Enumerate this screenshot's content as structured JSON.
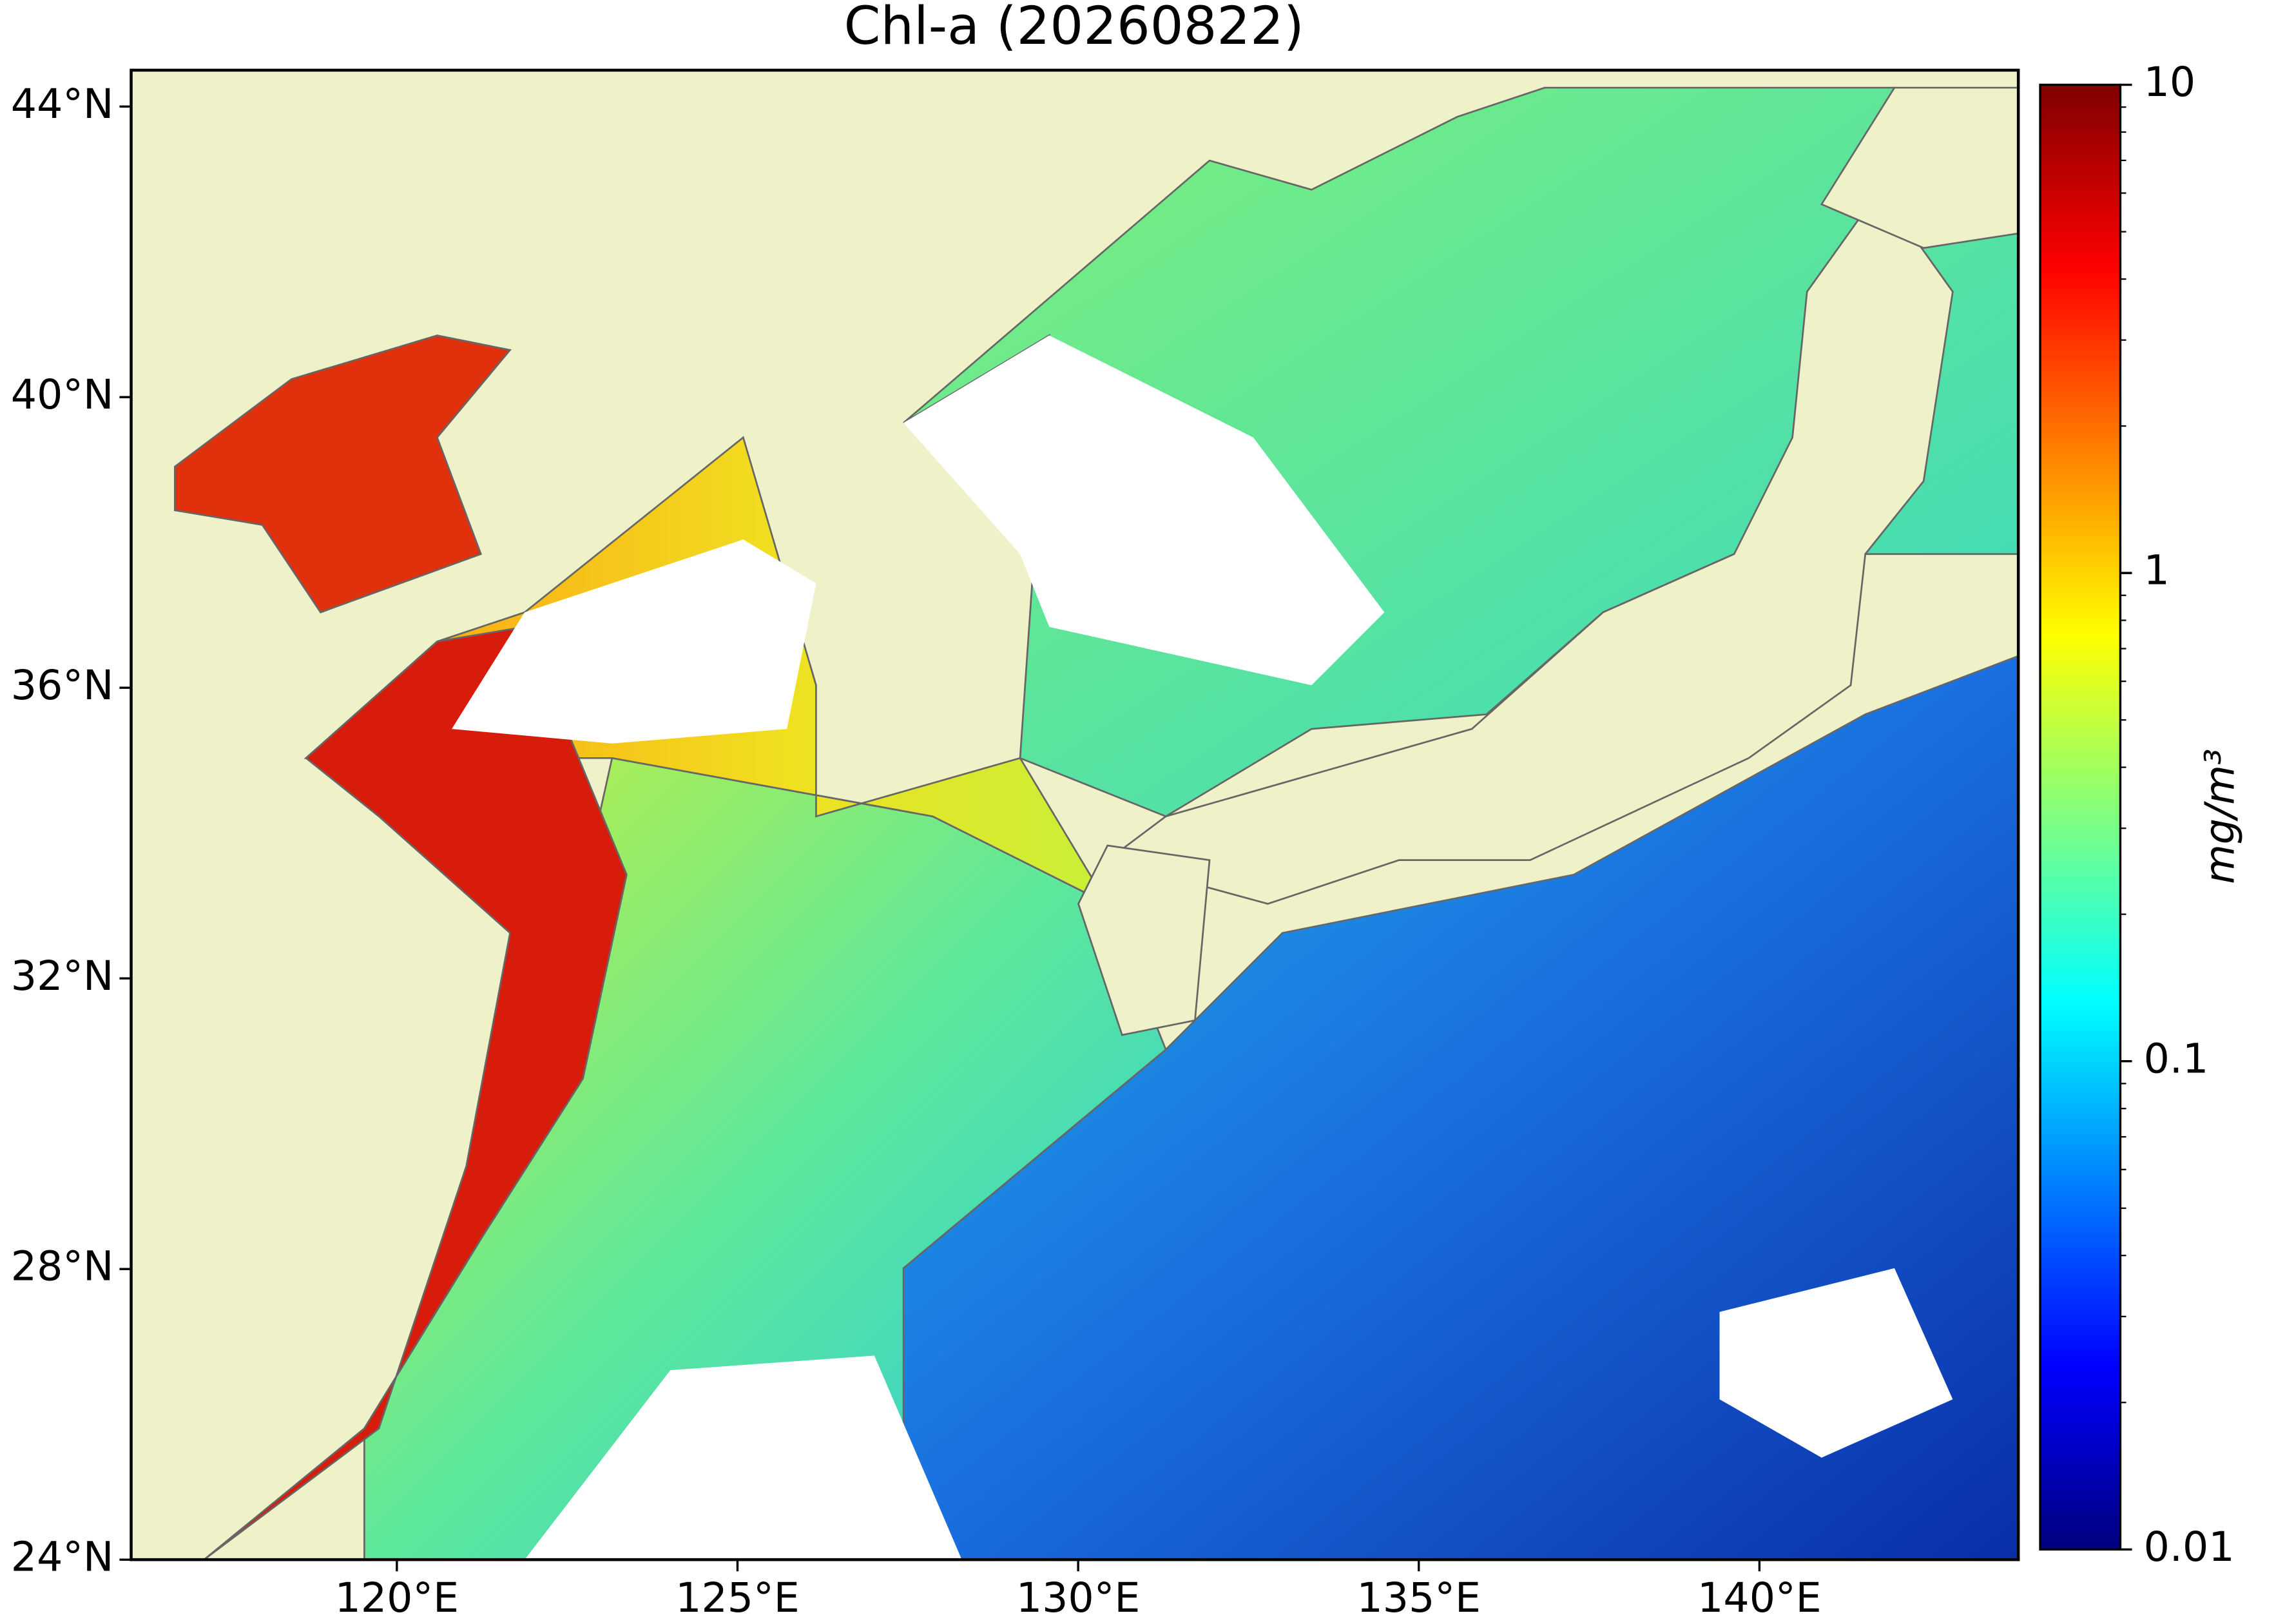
{
  "chart_data": {
    "type": "map",
    "title": "Chl-a (20260822)",
    "xlim": [
      116.1,
      143.8
    ],
    "ylim": [
      24,
      44.5
    ],
    "xticks": [
      {
        "value": 120,
        "label": "120°E"
      },
      {
        "value": 125,
        "label": "125°E"
      },
      {
        "value": 130,
        "label": "130°E"
      },
      {
        "value": 135,
        "label": "135°E"
      },
      {
        "value": 140,
        "label": "140°E"
      }
    ],
    "yticks": [
      {
        "value": 24,
        "label": "24°N"
      },
      {
        "value": 28,
        "label": "28°N"
      },
      {
        "value": 32,
        "label": "32°N"
      },
      {
        "value": 36,
        "label": "36°N"
      },
      {
        "value": 40,
        "label": "40°N"
      },
      {
        "value": 44,
        "label": "44°N"
      }
    ],
    "land_color": "#eff2c8",
    "colorbar": {
      "label": "mg/m³",
      "colormap": "jet",
      "log": true,
      "lim": [
        0.01,
        10
      ],
      "ticks": [
        0.01,
        0.1,
        1,
        10
      ]
    }
  }
}
